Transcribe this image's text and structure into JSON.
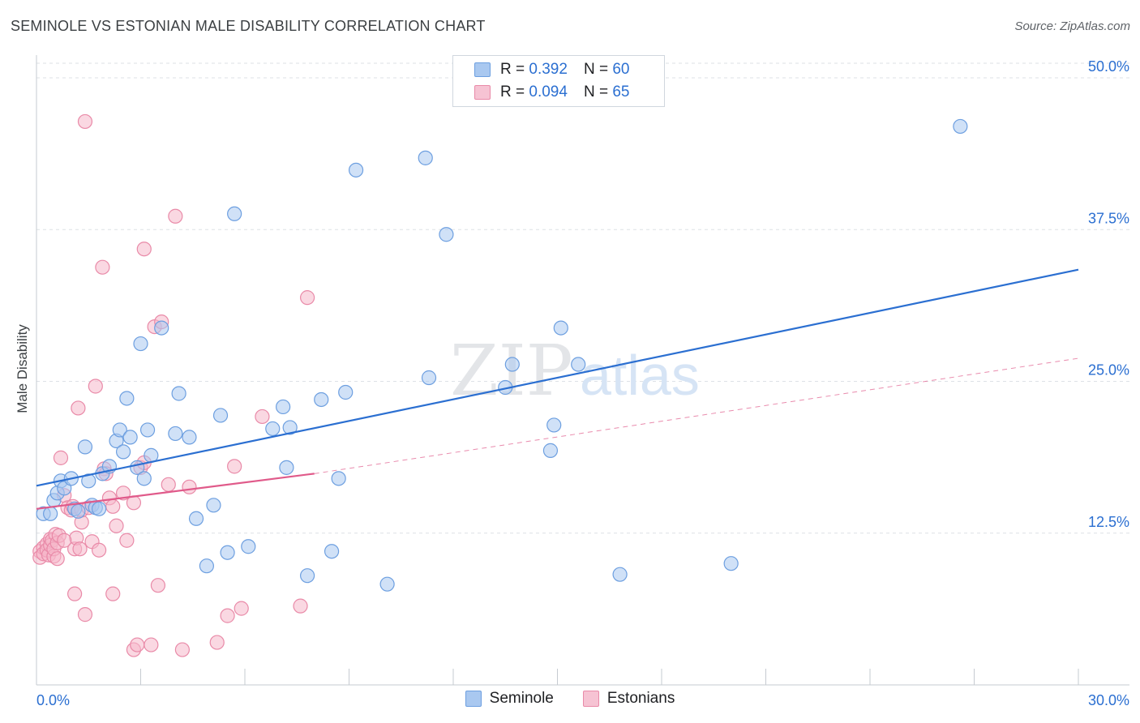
{
  "title": "SEMINOLE VS ESTONIAN MALE DISABILITY CORRELATION CHART",
  "source": "Source: ZipAtlas.com",
  "watermark": {
    "zip": "ZIP",
    "atlas": "atlas"
  },
  "legend_stats": [
    {
      "r_label": "R =",
      "r_value": "0.392",
      "n_label": "N =",
      "n_value": "60"
    },
    {
      "r_label": "R =",
      "r_value": "0.094",
      "n_label": "N =",
      "n_value": "65"
    }
  ],
  "colors": {
    "seminole_fill": "#a9c8f0",
    "seminole_stroke": "#6d9fe0",
    "seminole_line": "#2b6fd1",
    "estonians_fill": "#f6b8cb",
    "estonians_stroke": "#e98aa8",
    "estonians_line": "#e05a8a",
    "axis_label": "#2b6fd1",
    "grid": "#dde1e6"
  },
  "chart_data": {
    "type": "scatter",
    "title": "SEMINOLE VS ESTONIAN MALE DISABILITY CORRELATION CHART",
    "xlabel": "",
    "ylabel": "Male Disability",
    "xlim": [
      0,
      30
    ],
    "ylim": [
      0,
      50
    ],
    "x_tick_labels": [
      "0.0%",
      "30.0%"
    ],
    "y_ticks": [
      12.5,
      25.0,
      37.5,
      50.0
    ],
    "y_tick_labels": [
      "12.5%",
      "25.0%",
      "37.5%",
      "50.0%"
    ],
    "grid": true,
    "legend_position": "bottom",
    "series": [
      {
        "name": "Seminole",
        "r": 0.392,
        "n": 60,
        "trend": {
          "x": [
            0,
            30
          ],
          "y": [
            16.4,
            34.2
          ],
          "style": "solid"
        },
        "points": [
          [
            0.2,
            14.1
          ],
          [
            0.4,
            14.1
          ],
          [
            0.5,
            15.2
          ],
          [
            0.6,
            15.8
          ],
          [
            0.7,
            16.8
          ],
          [
            0.8,
            16.2
          ],
          [
            1.0,
            17.0
          ],
          [
            1.1,
            14.5
          ],
          [
            1.2,
            14.3
          ],
          [
            1.4,
            19.6
          ],
          [
            1.5,
            16.8
          ],
          [
            1.6,
            14.8
          ],
          [
            1.7,
            14.6
          ],
          [
            1.8,
            14.5
          ],
          [
            1.9,
            17.4
          ],
          [
            2.1,
            18.0
          ],
          [
            2.3,
            20.1
          ],
          [
            2.4,
            21.0
          ],
          [
            2.5,
            19.2
          ],
          [
            2.6,
            23.6
          ],
          [
            2.7,
            20.4
          ],
          [
            2.9,
            17.9
          ],
          [
            3.0,
            28.1
          ],
          [
            3.1,
            17.0
          ],
          [
            3.2,
            21.0
          ],
          [
            3.3,
            18.9
          ],
          [
            3.6,
            29.4
          ],
          [
            4.0,
            20.7
          ],
          [
            4.1,
            24.0
          ],
          [
            4.4,
            20.4
          ],
          [
            4.6,
            13.7
          ],
          [
            4.9,
            9.8
          ],
          [
            5.1,
            14.8
          ],
          [
            5.3,
            22.2
          ],
          [
            5.5,
            10.9
          ],
          [
            5.7,
            38.8
          ],
          [
            6.1,
            11.4
          ],
          [
            6.8,
            21.1
          ],
          [
            7.1,
            22.9
          ],
          [
            7.2,
            17.9
          ],
          [
            7.3,
            21.2
          ],
          [
            7.8,
            9.0
          ],
          [
            8.2,
            23.5
          ],
          [
            8.5,
            11.0
          ],
          [
            8.7,
            17.0
          ],
          [
            8.9,
            24.1
          ],
          [
            9.2,
            42.4
          ],
          [
            10.1,
            8.3
          ],
          [
            11.2,
            43.4
          ],
          [
            11.3,
            25.3
          ],
          [
            11.8,
            37.1
          ],
          [
            13.5,
            24.5
          ],
          [
            13.7,
            26.4
          ],
          [
            14.8,
            19.3
          ],
          [
            14.9,
            21.4
          ],
          [
            15.1,
            29.4
          ],
          [
            15.6,
            26.4
          ],
          [
            16.8,
            9.1
          ],
          [
            20.0,
            10.0
          ],
          [
            26.6,
            46.0
          ]
        ]
      },
      {
        "name": "Estonians",
        "r": 0.094,
        "n": 65,
        "trend": {
          "x": [
            0,
            8
          ],
          "y": [
            14.5,
            17.4
          ],
          "style": "solid",
          "dashed_extension": {
            "x": [
              8,
              30
            ],
            "y": [
              17.4,
              26.9
            ]
          }
        },
        "points": [
          [
            0.1,
            11.0
          ],
          [
            0.1,
            10.5
          ],
          [
            0.2,
            11.3
          ],
          [
            0.2,
            10.8
          ],
          [
            0.3,
            11.6
          ],
          [
            0.3,
            11.1
          ],
          [
            0.35,
            10.7
          ],
          [
            0.4,
            12.0
          ],
          [
            0.4,
            11.5
          ],
          [
            0.45,
            11.9
          ],
          [
            0.5,
            10.6
          ],
          [
            0.5,
            11.2
          ],
          [
            0.55,
            12.4
          ],
          [
            0.6,
            10.4
          ],
          [
            0.6,
            11.7
          ],
          [
            0.65,
            12.3
          ],
          [
            0.7,
            18.7
          ],
          [
            0.8,
            15.6
          ],
          [
            0.9,
            14.6
          ],
          [
            1.0,
            14.4
          ],
          [
            1.05,
            14.7
          ],
          [
            1.1,
            11.2
          ],
          [
            1.1,
            7.5
          ],
          [
            1.15,
            12.1
          ],
          [
            1.2,
            22.8
          ],
          [
            1.25,
            11.2
          ],
          [
            1.3,
            13.4
          ],
          [
            1.3,
            14.4
          ],
          [
            1.4,
            46.4
          ],
          [
            1.4,
            5.8
          ],
          [
            1.5,
            14.6
          ],
          [
            1.6,
            11.8
          ],
          [
            1.7,
            24.6
          ],
          [
            1.8,
            11.1
          ],
          [
            1.9,
            34.4
          ],
          [
            1.95,
            17.8
          ],
          [
            2.0,
            17.4
          ],
          [
            2.1,
            15.4
          ],
          [
            2.2,
            14.7
          ],
          [
            2.2,
            7.5
          ],
          [
            2.3,
            13.1
          ],
          [
            2.5,
            15.8
          ],
          [
            2.6,
            11.9
          ],
          [
            2.8,
            15.0
          ],
          [
            2.8,
            2.9
          ],
          [
            2.9,
            3.3
          ],
          [
            3.0,
            17.9
          ],
          [
            3.1,
            18.3
          ],
          [
            3.1,
            35.9
          ],
          [
            3.3,
            3.3
          ],
          [
            3.4,
            29.5
          ],
          [
            3.5,
            8.2
          ],
          [
            3.6,
            29.9
          ],
          [
            3.8,
            16.5
          ],
          [
            4.0,
            38.6
          ],
          [
            4.2,
            2.9
          ],
          [
            4.4,
            16.3
          ],
          [
            5.2,
            3.5
          ],
          [
            5.5,
            5.7
          ],
          [
            5.7,
            18.0
          ],
          [
            5.9,
            6.3
          ],
          [
            6.5,
            22.1
          ],
          [
            7.6,
            6.5
          ],
          [
            7.8,
            31.9
          ],
          [
            0.8,
            11.9
          ]
        ]
      }
    ]
  }
}
